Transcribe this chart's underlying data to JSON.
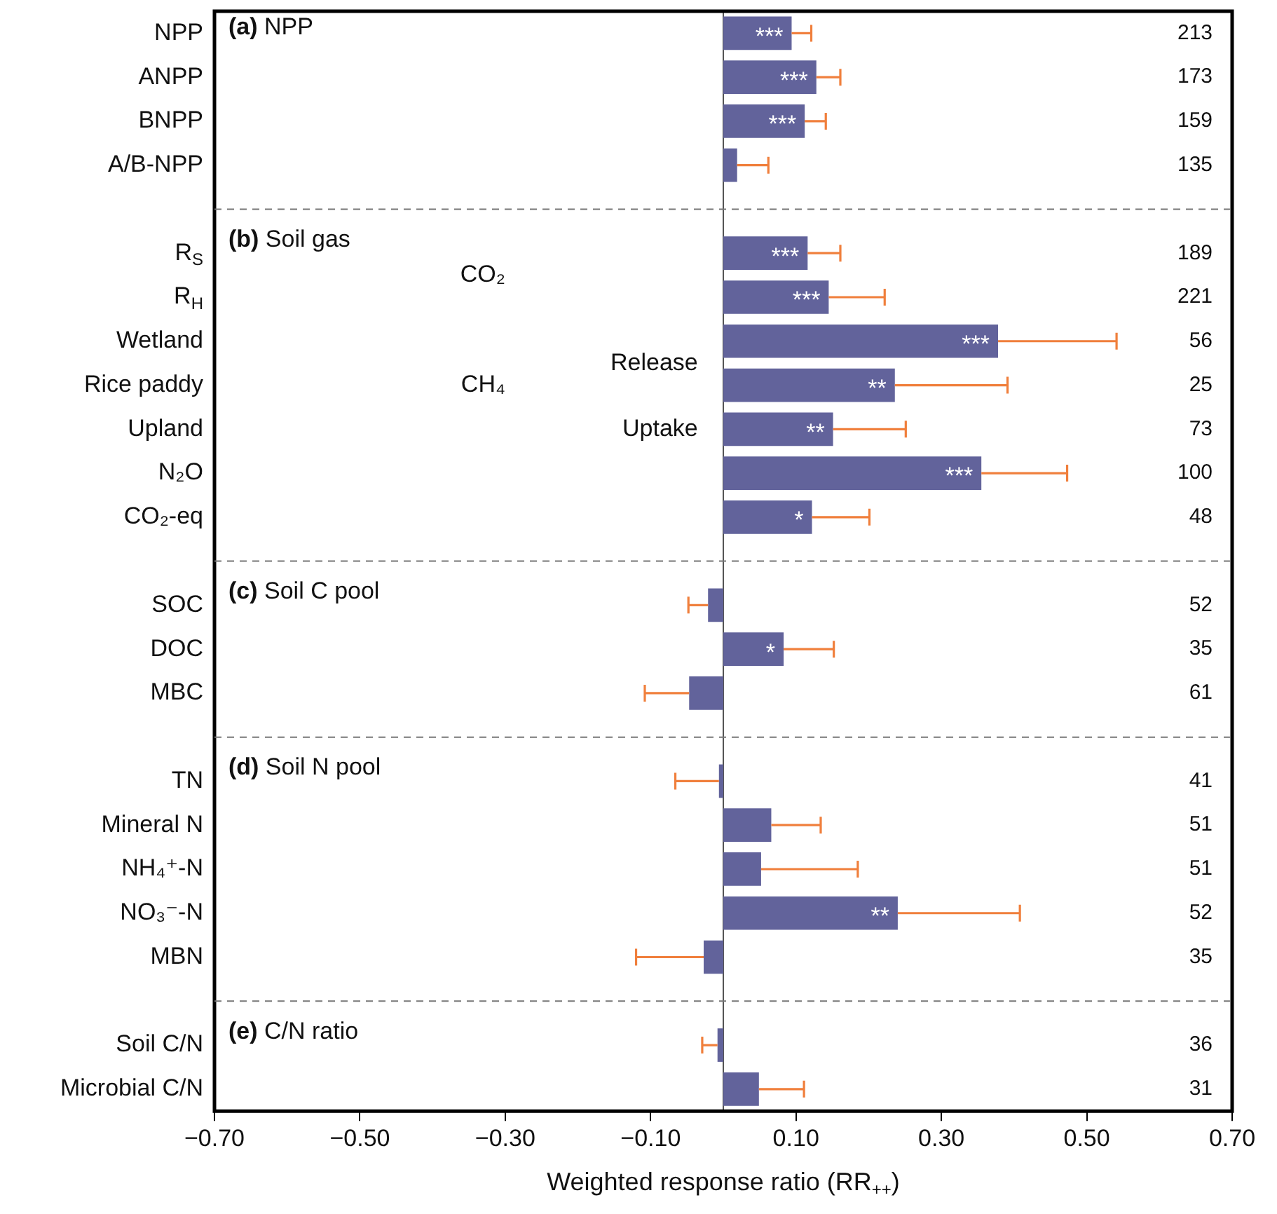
{
  "chart_data": {
    "type": "bar",
    "orientation": "horizontal",
    "xlabel": "Weighted response ratio (RR$_{++}$)",
    "categories": [
      "NPP",
      "ANPP",
      "BNPP",
      "A/B-NPP",
      null,
      "R$_{S}$",
      "R$_{H}$",
      "Wetland",
      "Rice paddy",
      "Upland",
      "N₂O",
      "CO₂-eq",
      null,
      "SOC",
      "DOC",
      "MBC",
      null,
      "TN",
      "Mineral N",
      "NH₄⁺-N",
      "NO₃⁻-N",
      "MBN",
      null,
      "Soil C/N",
      "Microbial C/N"
    ],
    "values": [
      0.094,
      0.128,
      0.112,
      0.019,
      null,
      0.116,
      0.145,
      0.378,
      0.236,
      0.151,
      0.355,
      0.122,
      null,
      -0.021,
      0.083,
      -0.047,
      null,
      -0.006,
      0.066,
      0.052,
      0.24,
      -0.027,
      null,
      -0.008,
      0.049
    ],
    "errors": [
      [
        0.094,
        0.121
      ],
      [
        0.128,
        0.161
      ],
      [
        0.112,
        0.141
      ],
      [
        0.019,
        0.062
      ],
      null,
      [
        0.116,
        0.161
      ],
      [
        0.145,
        0.222
      ],
      [
        0.378,
        0.541
      ],
      [
        0.236,
        0.391
      ],
      [
        0.151,
        0.251
      ],
      [
        0.355,
        0.473
      ],
      [
        0.122,
        0.201
      ],
      null,
      [
        -0.048,
        -0.021
      ],
      [
        0.083,
        0.152
      ],
      [
        -0.108,
        -0.047
      ],
      null,
      [
        -0.066,
        -0.006
      ],
      [
        0.066,
        0.134
      ],
      [
        0.052,
        0.185
      ],
      [
        0.24,
        0.408
      ],
      [
        -0.12,
        -0.027
      ],
      null,
      [
        -0.029,
        -0.008
      ],
      [
        0.049,
        0.111
      ]
    ],
    "color": "#62639b",
    "xlim": [
      -0.7,
      0.7
    ],
    "xticks": [
      {
        "value": -0.7,
        "label": "−0.70"
      },
      {
        "value": -0.5,
        "label": "−0.50"
      },
      {
        "value": -0.3,
        "label": "−0.30"
      },
      {
        "value": -0.1,
        "label": "−0.10"
      },
      {
        "value": 0.1,
        "label": "0.10"
      },
      {
        "value": 0.3,
        "label": "0.30"
      },
      {
        "value": 0.5,
        "label": "0.50"
      },
      {
        "value": 0.7,
        "label": "0.70"
      }
    ],
    "ref_lines": [
      {
        "axis": "x",
        "value": 0,
        "color": "#555555",
        "line_style": "solid"
      }
    ],
    "annotations": [
      "(a) NPP",
      "(b) Soil gas",
      "(c) Soil C pool",
      "(d) Soil N pool",
      "(e) C/N ratio",
      "CO₂",
      "CH₄",
      "Release",
      "Uptake",
      "213",
      "173",
      "159",
      "135",
      "189",
      "221",
      "56",
      "25",
      "73",
      "100",
      "48",
      "52",
      "35",
      "61",
      "41",
      "51",
      "51",
      "52",
      "35",
      "36",
      "31",
      {
        "text": "***",
        "x": 0.094,
        "y": "NPP"
      },
      {
        "text": "***",
        "x": 0.128,
        "y": "ANPP"
      },
      {
        "text": "***",
        "x": 0.112,
        "y": "BNPP"
      },
      {
        "text": "***",
        "x": 0.116,
        "y": "R$_{S}$"
      },
      {
        "text": "***",
        "x": 0.145,
        "y": "R$_{H}$"
      },
      {
        "text": "***",
        "x": 0.378,
        "y": "Wetland"
      },
      {
        "text": "**",
        "x": 0.236,
        "y": "Rice paddy"
      },
      {
        "text": "**",
        "x": 0.151,
        "y": "Upland"
      },
      {
        "text": "***",
        "x": 0.355,
        "y": "N₂O"
      },
      {
        "text": "*",
        "x": 0.122,
        "y": "CO₂-eq"
      },
      {
        "text": "*",
        "x": 0.083,
        "y": "DOC"
      },
      {
        "text": "**",
        "x": 0.24,
        "y": "NO₃⁻-N"
      }
    ]
  }
}
